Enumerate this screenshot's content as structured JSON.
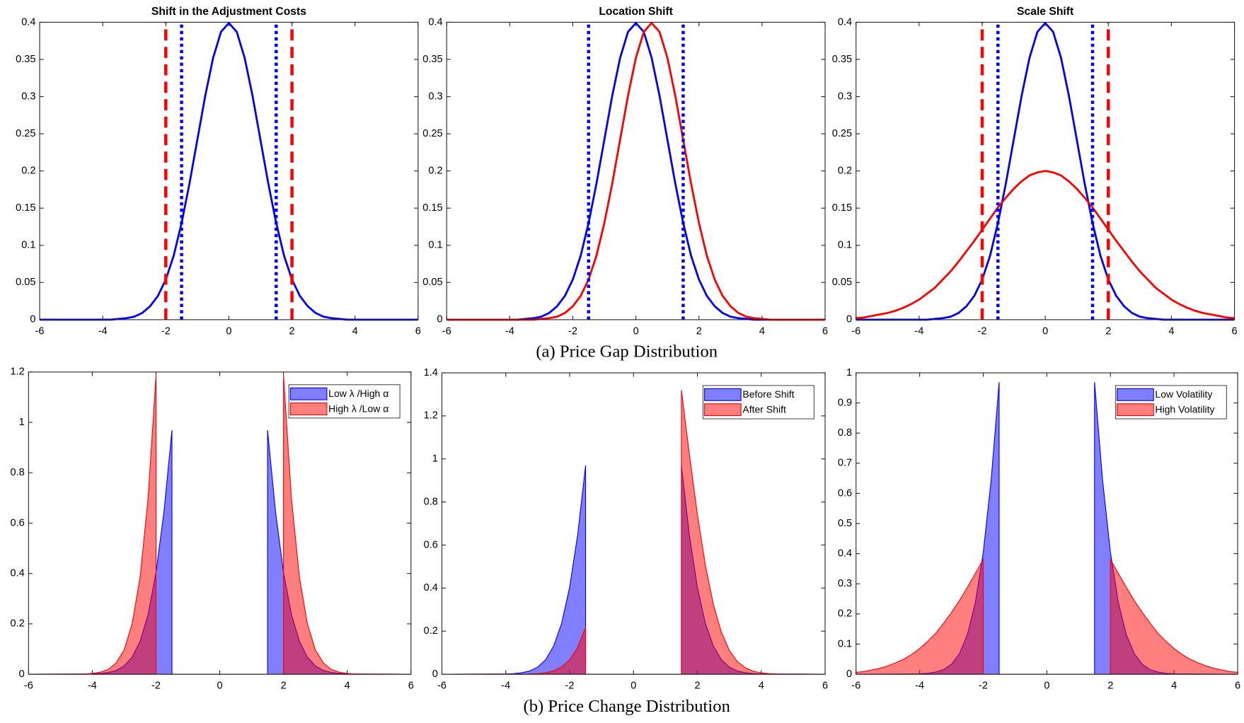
{
  "figure": {
    "captions": [
      "(a) Price Gap Distribution",
      "(b) Price Change Distribution"
    ]
  },
  "chart_data": [
    {
      "type": "line",
      "title": "Shift in the Adjustment Costs",
      "x": [
        -6,
        -5.75,
        -5.5,
        -5.25,
        -5,
        -4.75,
        -4.5,
        -4.25,
        -4,
        -3.75,
        -3.5,
        -3.25,
        -3,
        -2.75,
        -2.5,
        -2.25,
        -2,
        -1.75,
        -1.5,
        -1.25,
        -1,
        -0.75,
        -0.5,
        -0.25,
        0,
        0.25,
        0.5,
        0.75,
        1,
        1.25,
        1.5,
        1.75,
        2,
        2.25,
        2.5,
        2.75,
        3,
        3.25,
        3.5,
        3.75,
        4,
        4.25,
        4.5,
        4.75,
        5,
        5.25,
        5.5,
        5.75,
        6
      ],
      "series": [
        {
          "color": "#0000ff",
          "values": [
            0,
            0,
            0,
            0,
            0,
            0,
            0,
            0,
            0,
            0,
            0.001,
            0.002,
            0.004,
            0.009,
            0.018,
            0.032,
            0.054,
            0.086,
            0.13,
            0.183,
            0.242,
            0.301,
            0.352,
            0.387,
            0.399,
            0.387,
            0.352,
            0.301,
            0.242,
            0.183,
            0.13,
            0.086,
            0.054,
            0.032,
            0.018,
            0.009,
            0.004,
            0.002,
            0.001,
            0,
            0,
            0,
            0,
            0,
            0,
            0,
            0,
            0,
            0
          ]
        }
      ],
      "vlines": [
        {
          "x": -2,
          "color": "#ff0000",
          "style": "dashed"
        },
        {
          "x": 2,
          "color": "#ff0000",
          "style": "dashed"
        },
        {
          "x": -1.5,
          "color": "#0000ff",
          "style": "dotted"
        },
        {
          "x": 1.5,
          "color": "#0000ff",
          "style": "dotted"
        }
      ],
      "xlim": [
        -6,
        6
      ],
      "xticks": [
        -6,
        -4,
        -2,
        0,
        2,
        4,
        6
      ],
      "ylim": [
        0,
        0.4
      ],
      "yticks": [
        0,
        0.05,
        0.1,
        0.15,
        0.2,
        0.25,
        0.3,
        0.35,
        0.4
      ]
    },
    {
      "type": "line",
      "title": "Location Shift",
      "x": [
        -6,
        -5.75,
        -5.5,
        -5.25,
        -5,
        -4.75,
        -4.5,
        -4.25,
        -4,
        -3.75,
        -3.5,
        -3.25,
        -3,
        -2.75,
        -2.5,
        -2.25,
        -2,
        -1.75,
        -1.5,
        -1.25,
        -1,
        -0.75,
        -0.5,
        -0.25,
        0,
        0.25,
        0.5,
        0.75,
        1,
        1.25,
        1.5,
        1.75,
        2,
        2.25,
        2.5,
        2.75,
        3,
        3.25,
        3.5,
        3.75,
        4,
        4.25,
        4.5,
        4.75,
        5,
        5.25,
        5.5,
        5.75,
        6
      ],
      "series": [
        {
          "color": "#0000ff",
          "values": [
            0,
            0,
            0,
            0,
            0,
            0,
            0,
            0,
            0,
            0,
            0.001,
            0.002,
            0.004,
            0.009,
            0.018,
            0.032,
            0.054,
            0.086,
            0.13,
            0.183,
            0.242,
            0.301,
            0.352,
            0.387,
            0.399,
            0.387,
            0.352,
            0.301,
            0.242,
            0.183,
            0.13,
            0.086,
            0.054,
            0.032,
            0.018,
            0.009,
            0.004,
            0.002,
            0.001,
            0,
            0,
            0,
            0,
            0,
            0,
            0,
            0,
            0,
            0
          ]
        },
        {
          "color": "#ff0000",
          "values": [
            0,
            0,
            0,
            0,
            0,
            0,
            0,
            0,
            0,
            0,
            0,
            0,
            0.001,
            0.002,
            0.004,
            0.009,
            0.018,
            0.032,
            0.054,
            0.086,
            0.13,
            0.183,
            0.242,
            0.301,
            0.352,
            0.387,
            0.399,
            0.387,
            0.352,
            0.301,
            0.242,
            0.183,
            0.13,
            0.086,
            0.054,
            0.032,
            0.018,
            0.009,
            0.004,
            0.002,
            0.001,
            0,
            0,
            0,
            0,
            0,
            0,
            0,
            0
          ]
        }
      ],
      "vlines": [
        {
          "x": -1.5,
          "color": "#0000ff",
          "style": "dotted"
        },
        {
          "x": 1.5,
          "color": "#0000ff",
          "style": "dotted"
        }
      ],
      "xlim": [
        -6,
        6
      ],
      "xticks": [
        -6,
        -4,
        -2,
        0,
        2,
        4,
        6
      ],
      "ylim": [
        0,
        0.4
      ],
      "yticks": [
        0,
        0.05,
        0.1,
        0.15,
        0.2,
        0.25,
        0.3,
        0.35,
        0.4
      ]
    },
    {
      "type": "line",
      "title": "Scale Shift",
      "x": [
        -6,
        -5.75,
        -5.5,
        -5.25,
        -5,
        -4.75,
        -4.5,
        -4.25,
        -4,
        -3.75,
        -3.5,
        -3.25,
        -3,
        -2.75,
        -2.5,
        -2.25,
        -2,
        -1.75,
        -1.5,
        -1.25,
        -1,
        -0.75,
        -0.5,
        -0.25,
        0,
        0.25,
        0.5,
        0.75,
        1,
        1.25,
        1.5,
        1.75,
        2,
        2.25,
        2.5,
        2.75,
        3,
        3.25,
        3.5,
        3.75,
        4,
        4.25,
        4.5,
        4.75,
        5,
        5.25,
        5.5,
        5.75,
        6
      ],
      "series": [
        {
          "color": "#0000ff",
          "values": [
            0,
            0,
            0,
            0,
            0,
            0,
            0,
            0,
            0,
            0,
            0.001,
            0.002,
            0.004,
            0.009,
            0.018,
            0.032,
            0.054,
            0.086,
            0.13,
            0.183,
            0.242,
            0.301,
            0.352,
            0.387,
            0.399,
            0.387,
            0.352,
            0.301,
            0.242,
            0.183,
            0.13,
            0.086,
            0.054,
            0.032,
            0.018,
            0.009,
            0.004,
            0.002,
            0.001,
            0,
            0,
            0,
            0,
            0,
            0,
            0,
            0,
            0,
            0
          ]
        },
        {
          "color": "#ff0000",
          "values": [
            0.002,
            0.003,
            0.005,
            0.007,
            0.009,
            0.012,
            0.016,
            0.021,
            0.027,
            0.035,
            0.043,
            0.054,
            0.065,
            0.078,
            0.092,
            0.106,
            0.121,
            0.136,
            0.151,
            0.164,
            0.176,
            0.186,
            0.194,
            0.198,
            0.2,
            0.198,
            0.194,
            0.186,
            0.176,
            0.164,
            0.151,
            0.136,
            0.121,
            0.106,
            0.092,
            0.078,
            0.065,
            0.054,
            0.043,
            0.035,
            0.027,
            0.021,
            0.016,
            0.012,
            0.009,
            0.007,
            0.005,
            0.003,
            0.002
          ]
        }
      ],
      "vlines": [
        {
          "x": -2,
          "color": "#ff0000",
          "style": "dashed"
        },
        {
          "x": 2,
          "color": "#ff0000",
          "style": "dashed"
        },
        {
          "x": -1.5,
          "color": "#0000ff",
          "style": "dotted"
        },
        {
          "x": 1.5,
          "color": "#0000ff",
          "style": "dotted"
        }
      ],
      "xlim": [
        -6,
        6
      ],
      "xticks": [
        -6,
        -4,
        -2,
        0,
        2,
        4,
        6
      ],
      "ylim": [
        0,
        0.4
      ],
      "yticks": [
        0,
        0.05,
        0.1,
        0.15,
        0.2,
        0.25,
        0.3,
        0.35,
        0.4
      ]
    },
    {
      "type": "area",
      "series": [
        {
          "name": "Low  λ /High α",
          "color": "#0000ff",
          "x": [
            -6,
            -4,
            -3.75,
            -3.5,
            -3.25,
            -3,
            -2.75,
            -2.5,
            -2.25,
            -2,
            -1.75,
            -1.5,
            -1.5,
            1.5,
            1.5,
            1.75,
            2,
            2.25,
            2.5,
            2.75,
            3,
            3.25,
            3.5,
            3.75,
            4,
            6
          ],
          "values": [
            0,
            0.001,
            0.003,
            0.007,
            0.015,
            0.033,
            0.068,
            0.131,
            0.237,
            0.404,
            0.646,
            0.969,
            0,
            0,
            0.969,
            0.646,
            0.404,
            0.237,
            0.131,
            0.068,
            0.033,
            0.015,
            0.007,
            0.003,
            0.001,
            0
          ]
        },
        {
          "name": "High λ /Low  α",
          "color": "#ff0000",
          "x": [
            -6,
            -4.25,
            -4,
            -3.75,
            -3.5,
            -3.25,
            -3,
            -2.75,
            -2.5,
            -2.25,
            -2,
            -2,
            2,
            2,
            2.25,
            2.5,
            2.75,
            3,
            3.25,
            3.5,
            3.75,
            4,
            4.25,
            6
          ],
          "values": [
            0,
            0.001,
            0.003,
            0.008,
            0.019,
            0.045,
            0.097,
            0.2,
            0.385,
            0.697,
            1.187,
            0,
            0,
            1.187,
            0.697,
            0.385,
            0.2,
            0.097,
            0.045,
            0.019,
            0.008,
            0.003,
            0.001,
            0
          ]
        }
      ],
      "xlim": [
        -6,
        6
      ],
      "xticks": [
        -6,
        -4,
        -2,
        0,
        2,
        4,
        6
      ],
      "ylim": [
        0,
        1.2
      ],
      "yticks": [
        0,
        0.2,
        0.4,
        0.6,
        0.8,
        1,
        1.2
      ],
      "legend": "top-right"
    },
    {
      "type": "area",
      "series": [
        {
          "name": "Before Shift",
          "color": "#0000ff",
          "x": [
            -6,
            -4,
            -3.75,
            -3.5,
            -3.25,
            -3,
            -2.75,
            -2.5,
            -2.25,
            -2,
            -1.75,
            -1.5,
            -1.5,
            1.5,
            1.5,
            1.75,
            2,
            2.25,
            2.5,
            2.75,
            3,
            3.25,
            3.5,
            3.75,
            4,
            6
          ],
          "values": [
            0,
            0.001,
            0.003,
            0.007,
            0.015,
            0.033,
            0.068,
            0.131,
            0.237,
            0.404,
            0.646,
            0.969,
            0,
            0,
            0.969,
            0.646,
            0.404,
            0.237,
            0.131,
            0.068,
            0.033,
            0.015,
            0.007,
            0.003,
            0.001,
            0
          ]
        },
        {
          "name": "After Shift",
          "color": "#ff0000",
          "x": [
            -6,
            -3.25,
            -3,
            -2.75,
            -2.5,
            -2.25,
            -2,
            -1.75,
            -1.5,
            -1.5,
            1.5,
            1.5,
            1.75,
            2,
            2.25,
            2.5,
            2.75,
            3,
            3.25,
            3.5,
            3.75,
            4,
            4.25,
            4.5,
            6
          ],
          "values": [
            0,
            0.001,
            0.003,
            0.007,
            0.016,
            0.034,
            0.067,
            0.125,
            0.218,
            0,
            0,
            1.32,
            1.021,
            0.743,
            0.507,
            0.325,
            0.196,
            0.111,
            0.059,
            0.03,
            0.014,
            0.006,
            0.003,
            0.001,
            0
          ]
        }
      ],
      "xlim": [
        -6,
        6
      ],
      "xticks": [
        -6,
        -4,
        -2,
        0,
        2,
        4,
        6
      ],
      "ylim": [
        0,
        1.4
      ],
      "yticks": [
        0,
        0.2,
        0.4,
        0.6,
        0.8,
        1,
        1.2,
        1.4
      ],
      "legend": "top-right"
    },
    {
      "type": "area",
      "series": [
        {
          "name": "Low Volatility",
          "color": "#0000ff",
          "x": [
            -6,
            -4,
            -3.75,
            -3.5,
            -3.25,
            -3,
            -2.75,
            -2.5,
            -2.25,
            -2,
            -1.75,
            -1.5,
            -1.5,
            1.5,
            1.5,
            1.75,
            2,
            2.25,
            2.5,
            2.75,
            3,
            3.25,
            3.5,
            3.75,
            4,
            6
          ],
          "values": [
            0,
            0.001,
            0.003,
            0.007,
            0.015,
            0.033,
            0.068,
            0.131,
            0.237,
            0.404,
            0.646,
            0.969,
            0,
            0,
            0.969,
            0.646,
            0.404,
            0.237,
            0.131,
            0.068,
            0.033,
            0.015,
            0.007,
            0.003,
            0.001,
            0
          ]
        },
        {
          "name": "High Volatility",
          "color": "#ff0000",
          "x": [
            -6,
            -5.75,
            -5.5,
            -5.25,
            -5,
            -4.75,
            -4.5,
            -4.25,
            -4,
            -3.75,
            -3.5,
            -3.25,
            -3,
            -2.75,
            -2.5,
            -2.25,
            -2,
            -2,
            2,
            2,
            2.25,
            2.5,
            2.75,
            3,
            3.25,
            3.5,
            3.75,
            4,
            4.25,
            4.5,
            4.75,
            5,
            5.25,
            5.5,
            5.75,
            6
          ],
          "values": [
            0.006,
            0.009,
            0.014,
            0.02,
            0.028,
            0.038,
            0.05,
            0.066,
            0.085,
            0.109,
            0.135,
            0.169,
            0.205,
            0.244,
            0.288,
            0.334,
            0.381,
            0,
            0,
            0.381,
            0.334,
            0.288,
            0.244,
            0.205,
            0.169,
            0.135,
            0.109,
            0.085,
            0.066,
            0.05,
            0.038,
            0.028,
            0.02,
            0.014,
            0.009,
            0.006
          ]
        }
      ],
      "xlim": [
        -6,
        6
      ],
      "xticks": [
        -6,
        -4,
        -2,
        0,
        2,
        4,
        6
      ],
      "ylim": [
        0,
        1
      ],
      "yticks": [
        0,
        0.1,
        0.2,
        0.3,
        0.4,
        0.5,
        0.6,
        0.7,
        0.8,
        0.9,
        1
      ],
      "legend": "top-right"
    }
  ]
}
